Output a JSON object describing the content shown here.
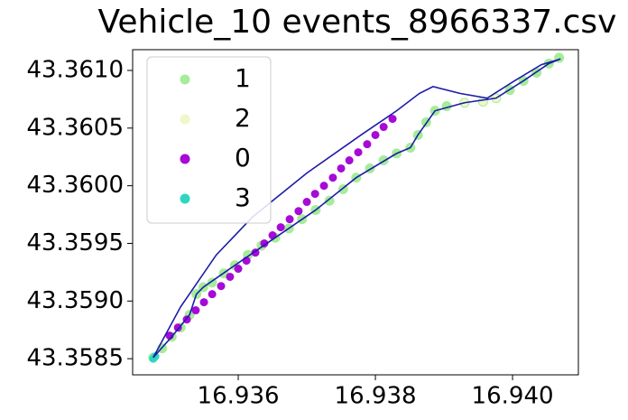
{
  "chart_data": {
    "type": "scatter",
    "title": "Vehicle_10 events_8966337.csv",
    "xlim": [
      16.93446,
      16.94096
    ],
    "ylim": [
      43.35836,
      43.36118
    ],
    "xticks": [
      16.936,
      16.938,
      {
        "value": 16.94,
        "label": "16.940"
      }
    ],
    "yticks": [
      43.3585,
      {
        "value": 43.359,
        "label": "43.3590"
      },
      43.3595,
      {
        "value": 43.36,
        "label": "43.3600"
      },
      43.3605,
      {
        "value": 43.361,
        "label": "43.3610"
      }
    ],
    "legend": "upper left",
    "line": {
      "color": "#1c1ca8",
      "x": [
        16.93476,
        16.93503,
        16.93529,
        16.93539,
        16.93549,
        16.93595,
        16.93654,
        16.93713,
        16.93772,
        16.93831,
        16.93851,
        16.93862,
        16.93887,
        16.9393,
        16.93976,
        16.94016,
        16.94053,
        16.9407,
        16.94042,
        16.94003,
        16.93963,
        16.93924,
        16.93884,
        16.93864,
        16.93831,
        16.93779,
        16.937,
        16.93621,
        16.93568,
        16.93516,
        16.93476
      ],
      "y": [
        43.35851,
        43.35869,
        43.35888,
        43.35906,
        43.35912,
        43.35931,
        43.35955,
        43.35979,
        43.36007,
        43.36028,
        43.36033,
        43.36044,
        43.36065,
        43.36072,
        43.36076,
        43.36091,
        43.36106,
        43.3611,
        43.36105,
        43.36091,
        43.36076,
        43.3608,
        43.36086,
        43.3608,
        43.36065,
        43.36044,
        43.36011,
        43.35973,
        43.3594,
        43.35895,
        43.35851
      ]
    },
    "series": [
      {
        "name": "1",
        "color": "#a6ec9a",
        "x": [
          16.93476,
          16.93489,
          16.93503,
          16.93516,
          16.93529,
          16.93539,
          16.93549,
          16.93562,
          16.93579,
          16.93595,
          16.93614,
          16.93634,
          16.93654,
          16.93674,
          16.93693,
          16.93713,
          16.93733,
          16.93753,
          16.93772,
          16.93792,
          16.93812,
          16.93831,
          16.93851,
          16.93862,
          16.93874,
          16.93887,
          16.93904,
          16.9393,
          16.93957,
          16.93976,
          16.93996,
          16.94016,
          16.94035,
          16.94053,
          16.94068
        ],
        "y": [
          43.35851,
          43.35859,
          43.35869,
          43.35877,
          43.35888,
          43.35906,
          43.35912,
          43.35916,
          43.35924,
          43.35931,
          43.3594,
          43.35948,
          43.35955,
          43.35963,
          43.35971,
          43.35979,
          43.35987,
          43.35997,
          43.36007,
          43.36015,
          43.36022,
          43.36028,
          43.36033,
          43.36044,
          43.36055,
          43.36065,
          43.36069,
          43.36072,
          43.36073,
          43.36076,
          43.36083,
          43.36091,
          43.36098,
          43.36106,
          43.36111
        ]
      },
      {
        "name": "2",
        "color": "#eef8c8",
        "x": [
          16.9393,
          16.93957,
          16.93976
        ],
        "y": [
          43.36072,
          43.36073,
          43.36076
        ]
      },
      {
        "name": "0",
        "color": "#a70ad6",
        "x": [
          16.935,
          16.93512,
          16.93525,
          16.93538,
          16.9355,
          16.93562,
          16.93575,
          16.93588,
          16.936,
          16.93612,
          16.93625,
          16.93638,
          16.9365,
          16.93662,
          16.93675,
          16.93688,
          16.937,
          16.93712,
          16.93725,
          16.93738,
          16.9375,
          16.93762,
          16.93775,
          16.93788,
          16.938,
          16.93812,
          16.93825
        ],
        "y": [
          43.3587,
          43.35877,
          43.35884,
          43.35892,
          43.35899,
          43.35906,
          43.35913,
          43.35921,
          43.35928,
          43.35935,
          43.35942,
          43.3595,
          43.35957,
          43.35964,
          43.35971,
          43.35978,
          43.35986,
          43.35993,
          43.36,
          43.36007,
          43.36015,
          43.36022,
          43.36029,
          43.36036,
          43.36044,
          43.36051,
          43.36058
        ]
      },
      {
        "name": "3",
        "color": "#2ed6c0",
        "x": [
          16.93476,
          16.93479
        ],
        "y": [
          43.3585,
          43.35852
        ]
      }
    ]
  }
}
